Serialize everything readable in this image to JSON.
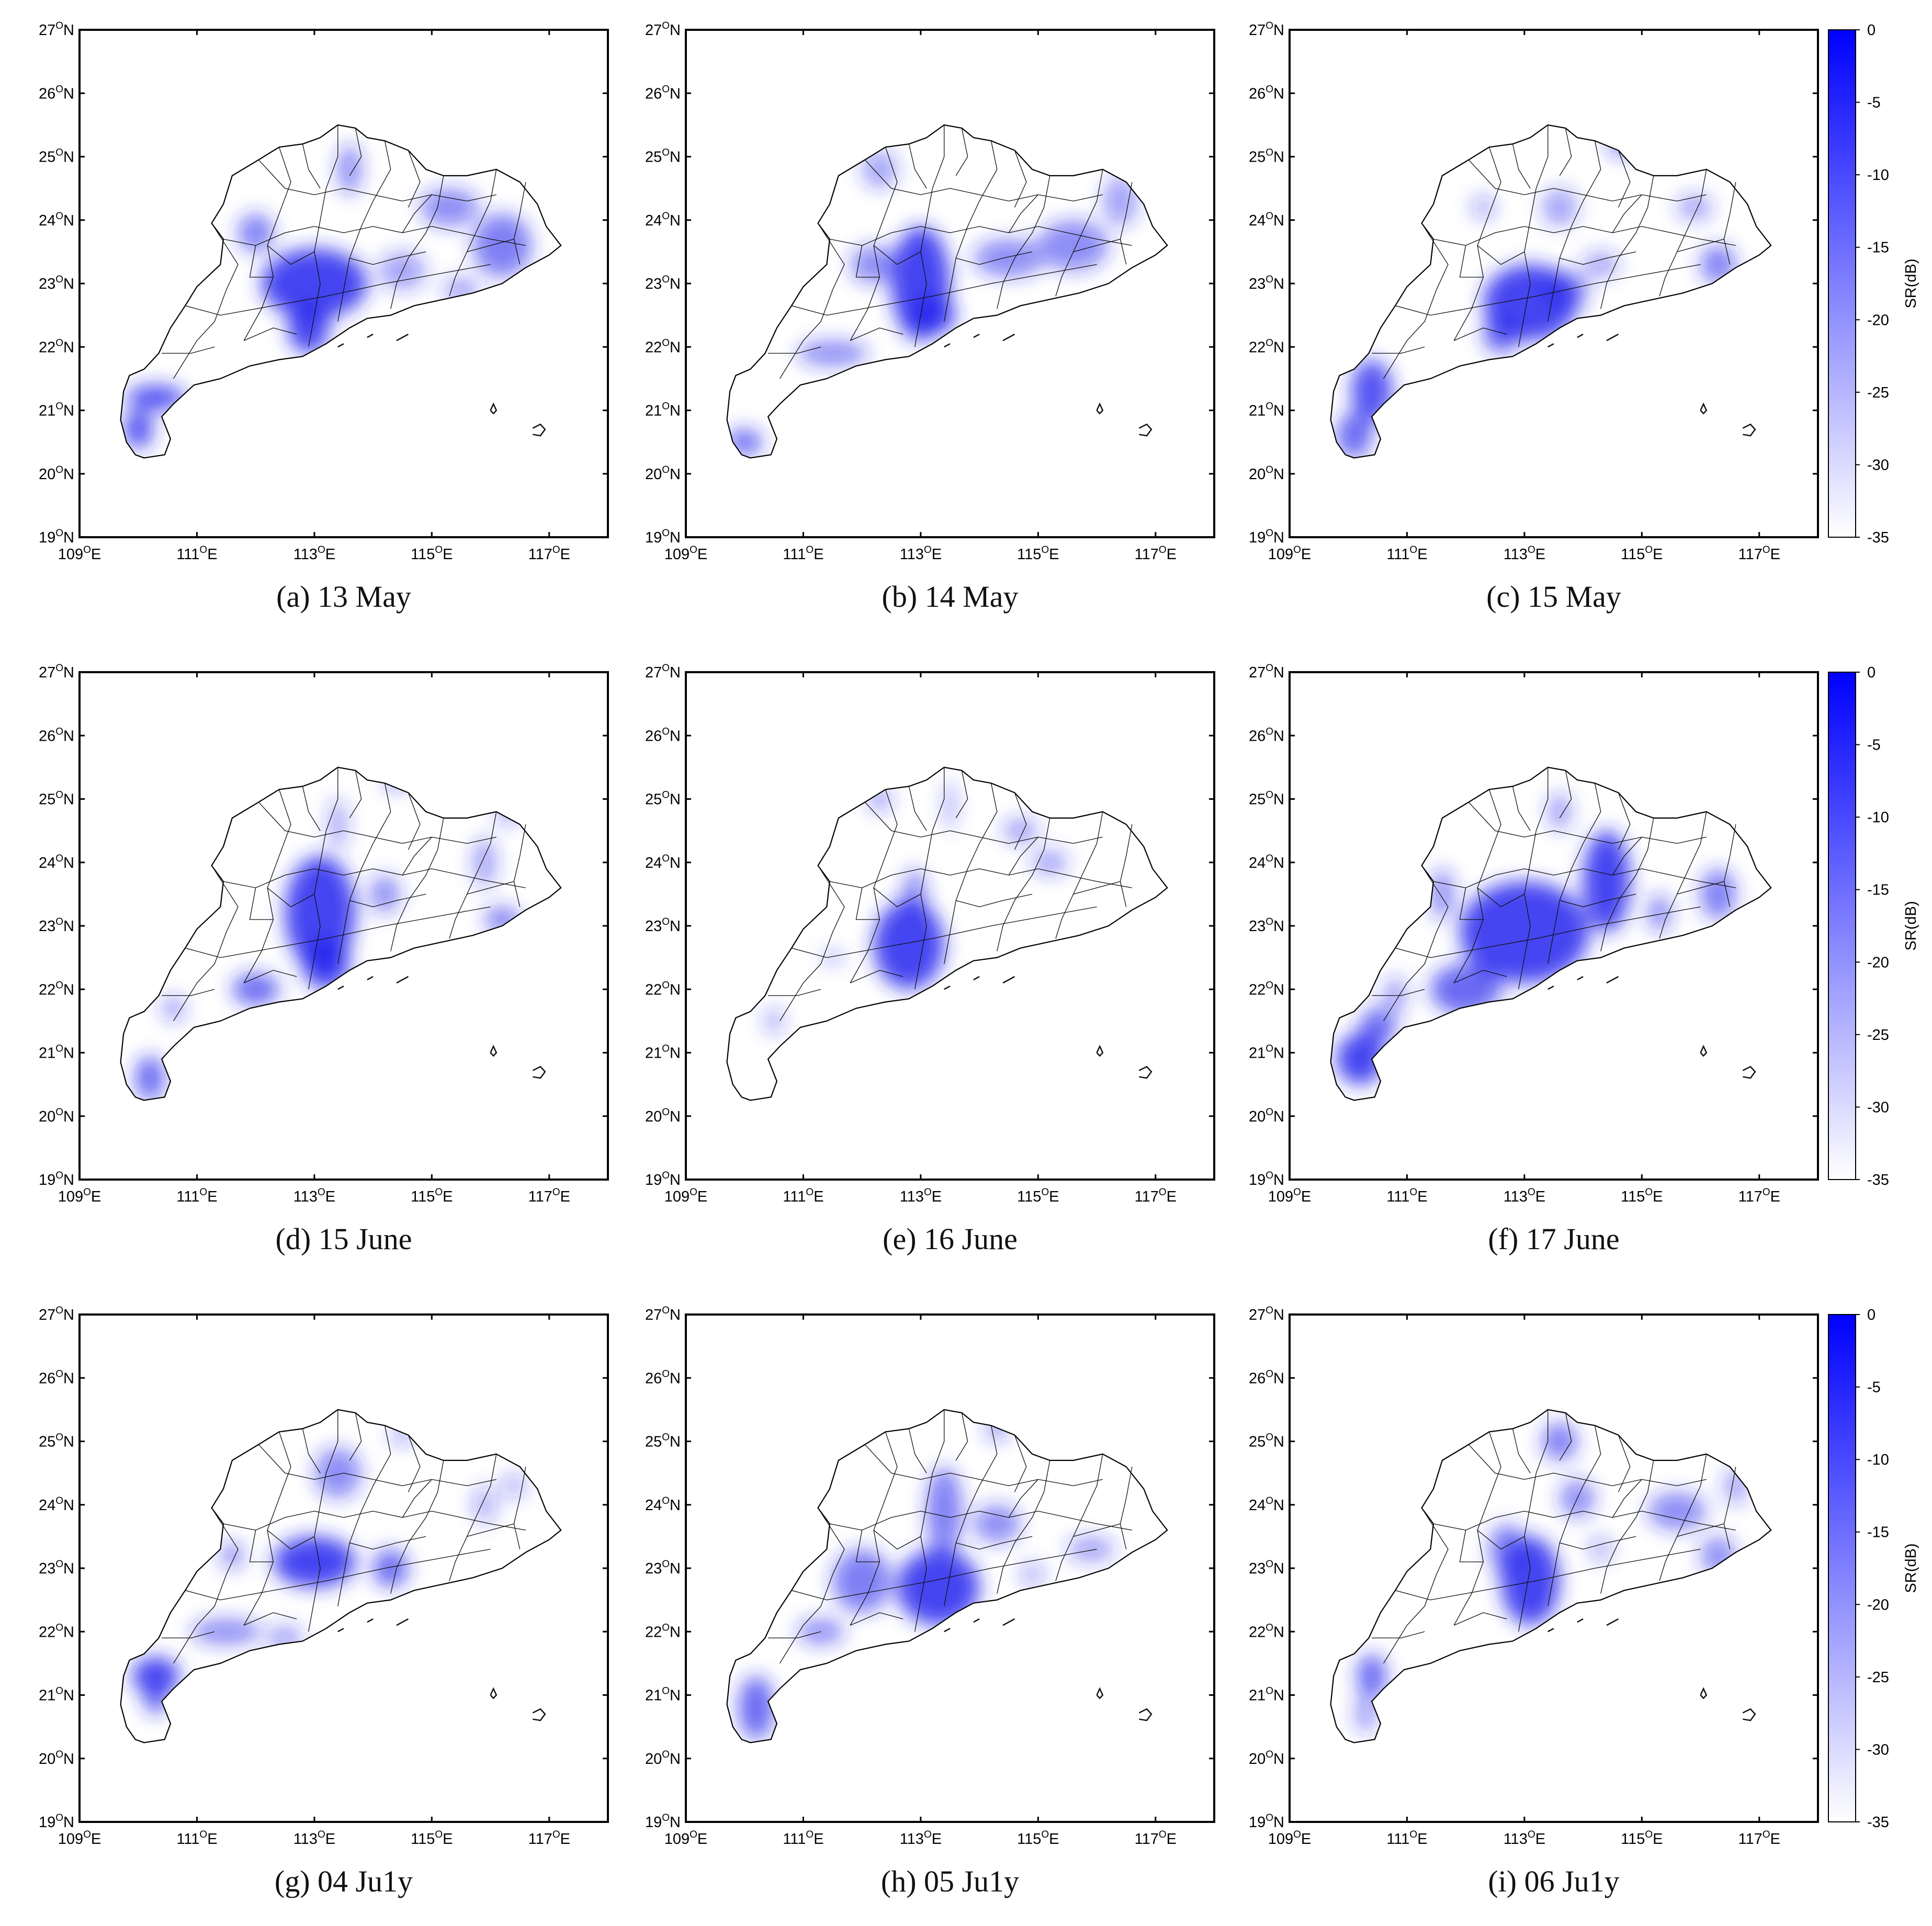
{
  "figure": {
    "lat_ticks": [
      "19",
      "20",
      "21",
      "22",
      "23",
      "24",
      "25",
      "26",
      "27"
    ],
    "lon_ticks": [
      "109",
      "111",
      "113",
      "115",
      "117"
    ],
    "lat_suffix": "N",
    "lon_suffix": "E",
    "degree_mark": "O",
    "panels": [
      {
        "caption": "(a) 13 May",
        "blobs": [
          [
            113.0,
            23.0,
            0.9,
            0.55,
            1
          ],
          [
            112.9,
            22.3,
            0.35,
            0.4,
            1
          ],
          [
            110.3,
            21.2,
            0.5,
            0.2,
            0.9
          ],
          [
            110.0,
            20.7,
            0.25,
            0.3,
            0.9
          ],
          [
            112.0,
            23.8,
            0.3,
            0.3,
            0.7
          ],
          [
            113.6,
            24.8,
            0.2,
            0.4,
            0.6
          ],
          [
            115.3,
            24.2,
            0.5,
            0.3,
            0.6
          ],
          [
            116.2,
            23.6,
            0.5,
            0.5,
            0.7
          ],
          [
            114.5,
            23.2,
            0.4,
            0.3,
            0.5
          ],
          [
            115.5,
            22.9,
            0.3,
            0.2,
            0.5
          ]
        ]
      },
      {
        "caption": "(b) 14 May",
        "blobs": [
          [
            113.0,
            23.0,
            0.5,
            0.9,
            1
          ],
          [
            113.2,
            22.5,
            0.4,
            0.3,
            0.9
          ],
          [
            112.2,
            23.3,
            0.4,
            0.3,
            0.6
          ],
          [
            114.5,
            23.4,
            0.6,
            0.3,
            0.6
          ],
          [
            115.6,
            23.6,
            0.6,
            0.4,
            0.6
          ],
          [
            116.4,
            24.3,
            0.3,
            0.4,
            0.5
          ],
          [
            111.5,
            21.9,
            0.6,
            0.2,
            0.6
          ],
          [
            110.0,
            20.5,
            0.3,
            0.2,
            0.8
          ],
          [
            112.3,
            24.8,
            0.3,
            0.3,
            0.5
          ]
        ]
      },
      {
        "caption": "(c) 15 May",
        "blobs": [
          [
            113.1,
            22.7,
            0.8,
            0.6,
            1
          ],
          [
            112.6,
            22.2,
            0.3,
            0.3,
            0.8
          ],
          [
            113.7,
            22.9,
            0.4,
            0.3,
            0.6
          ],
          [
            110.4,
            21.3,
            0.35,
            0.5,
            0.9
          ],
          [
            110.1,
            20.6,
            0.3,
            0.35,
            0.8
          ],
          [
            116.3,
            23.3,
            0.3,
            0.3,
            0.7
          ],
          [
            114.3,
            23.3,
            0.3,
            0.2,
            0.5
          ],
          [
            113.6,
            24.2,
            0.3,
            0.3,
            0.5
          ],
          [
            115.9,
            24.2,
            0.3,
            0.2,
            0.5
          ],
          [
            114.7,
            25.2,
            0.3,
            0.2,
            0.6
          ],
          [
            112.3,
            24.2,
            0.2,
            0.2,
            0.4
          ]
        ]
      },
      {
        "caption": "(d) 15 June",
        "blobs": [
          [
            113.1,
            23.2,
            0.6,
            0.9,
            1
          ],
          [
            113.2,
            22.4,
            0.4,
            0.4,
            1
          ],
          [
            112.0,
            22.0,
            0.4,
            0.25,
            0.8
          ],
          [
            110.2,
            20.6,
            0.25,
            0.35,
            0.8
          ],
          [
            110.6,
            21.7,
            0.2,
            0.2,
            0.5
          ],
          [
            114.2,
            23.5,
            0.25,
            0.3,
            0.6
          ],
          [
            116.2,
            23.1,
            0.3,
            0.2,
            0.7
          ],
          [
            115.9,
            24.0,
            0.2,
            0.4,
            0.5
          ],
          [
            114.4,
            25.3,
            0.2,
            0.15,
            0.6
          ],
          [
            113.4,
            24.6,
            0.15,
            0.4,
            0.5
          ],
          [
            116.3,
            24.8,
            0.2,
            0.2,
            0.5
          ]
        ]
      },
      {
        "caption": "(e) 16 June",
        "blobs": [
          [
            112.8,
            22.7,
            0.6,
            0.7,
            1
          ],
          [
            112.9,
            23.5,
            0.2,
            0.4,
            0.6
          ],
          [
            112.3,
            25.0,
            0.2,
            0.2,
            0.5
          ],
          [
            113.5,
            24.9,
            0.1,
            0.4,
            0.4
          ],
          [
            114.7,
            24.5,
            0.3,
            0.2,
            0.5
          ],
          [
            115.2,
            24.0,
            0.3,
            0.2,
            0.5
          ],
          [
            110.5,
            21.5,
            0.15,
            0.2,
            0.5
          ],
          [
            111.5,
            22.5,
            0.2,
            0.1,
            0.4
          ]
        ]
      },
      {
        "caption": "(f) 17 June",
        "blobs": [
          [
            113.0,
            22.9,
            1.1,
            0.8,
            1
          ],
          [
            114.4,
            23.7,
            0.4,
            0.8,
            1
          ],
          [
            112.0,
            22.0,
            0.6,
            0.4,
            0.8
          ],
          [
            110.2,
            20.9,
            0.4,
            0.4,
            1
          ],
          [
            110.5,
            21.4,
            0.3,
            0.3,
            0.8
          ],
          [
            116.3,
            23.5,
            0.3,
            0.4,
            0.7
          ],
          [
            115.3,
            23.2,
            0.2,
            0.3,
            0.6
          ],
          [
            113.6,
            24.8,
            0.2,
            0.3,
            0.5
          ],
          [
            111.6,
            23.5,
            0.2,
            0.4,
            0.6
          ],
          [
            110.8,
            21.9,
            0.2,
            0.3,
            0.5
          ]
        ]
      },
      {
        "caption": "(g) 04 Ju1y",
        "blobs": [
          [
            113.0,
            23.1,
            0.7,
            0.4,
            1
          ],
          [
            114.3,
            23.0,
            0.3,
            0.3,
            0.8
          ],
          [
            113.4,
            24.5,
            0.4,
            0.4,
            0.6
          ],
          [
            110.3,
            21.3,
            0.4,
            0.3,
            1
          ],
          [
            110.3,
            20.9,
            0.2,
            0.2,
            0.8
          ],
          [
            111.5,
            22.0,
            0.6,
            0.2,
            0.6
          ],
          [
            112.5,
            21.9,
            0.3,
            0.2,
            0.5
          ],
          [
            111.6,
            23.2,
            0.2,
            0.2,
            0.6
          ],
          [
            114.5,
            25.1,
            0.2,
            0.15,
            0.5
          ],
          [
            115.9,
            24.0,
            0.2,
            0.3,
            0.4
          ],
          [
            116.4,
            24.3,
            0.2,
            0.2,
            0.4
          ]
        ]
      },
      {
        "caption": "(h) 05 Ju1y",
        "blobs": [
          [
            113.3,
            22.7,
            0.7,
            0.6,
            1
          ],
          [
            113.4,
            23.9,
            0.3,
            0.7,
            0.7
          ],
          [
            112.0,
            22.8,
            0.5,
            0.5,
            0.7
          ],
          [
            111.3,
            22.0,
            0.4,
            0.2,
            0.6
          ],
          [
            114.3,
            23.7,
            0.4,
            0.3,
            0.6
          ],
          [
            115.9,
            23.3,
            0.4,
            0.2,
            0.5
          ],
          [
            114.9,
            22.9,
            0.2,
            0.2,
            0.4
          ],
          [
            110.2,
            20.8,
            0.3,
            0.5,
            0.8
          ],
          [
            114.3,
            25.2,
            0.2,
            0.2,
            0.5
          ]
        ]
      },
      {
        "caption": "(i) 06 Ju1y",
        "blobs": [
          [
            113.1,
            22.8,
            0.5,
            0.7,
            1
          ],
          [
            112.7,
            23.3,
            0.3,
            0.4,
            0.7
          ],
          [
            113.9,
            24.1,
            0.3,
            0.3,
            0.6
          ],
          [
            113.6,
            25.0,
            0.3,
            0.3,
            0.7
          ],
          [
            110.4,
            21.3,
            0.25,
            0.35,
            0.8
          ],
          [
            110.3,
            20.7,
            0.2,
            0.3,
            0.5
          ],
          [
            115.6,
            23.9,
            0.5,
            0.3,
            0.6
          ],
          [
            116.3,
            23.2,
            0.3,
            0.3,
            0.6
          ],
          [
            116.6,
            24.3,
            0.2,
            0.3,
            0.5
          ],
          [
            114.3,
            23.3,
            0.2,
            0.2,
            0.4
          ]
        ]
      }
    ]
  },
  "colorbar": {
    "label": "SR(dB)",
    "ticks": [
      "0",
      "-5",
      "-10",
      "-15",
      "-20",
      "-25",
      "-30",
      "-35"
    ],
    "color_max": "#0000ff",
    "color_min": "#ffffff"
  },
  "map_colors": {
    "outline": "#000000",
    "blob": "#2323ee"
  }
}
